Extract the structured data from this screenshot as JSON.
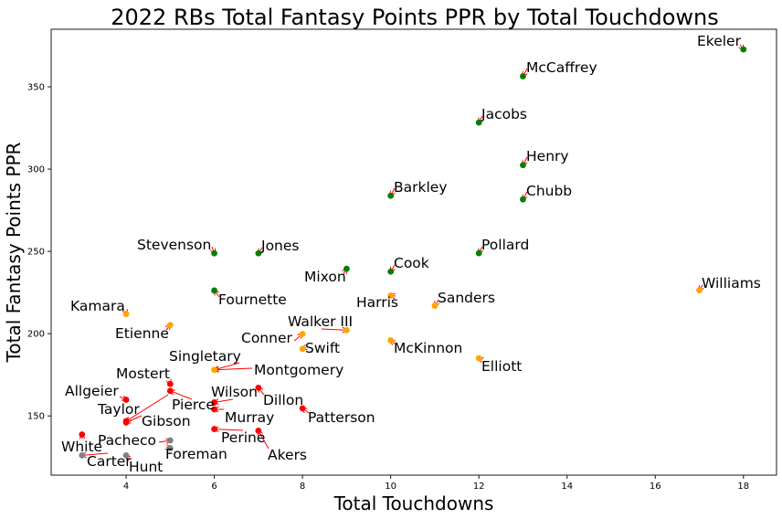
{
  "chart_data": {
    "type": "scatter",
    "title": "2022 RBs Total Fantasy Points PPR by Total Touchdowns",
    "xlabel": "Total Touchdowns",
    "ylabel": "Total Fantasy Points PPR",
    "xlim": [
      2.3,
      18.75
    ],
    "ylim": [
      114,
      385
    ],
    "xticks": [
      4,
      6,
      8,
      10,
      12,
      14,
      16,
      18
    ],
    "yticks": [
      150,
      200,
      250,
      300,
      350
    ],
    "grid": false,
    "colors": {
      "green": "#008000",
      "orange": "#ffa500",
      "red": "#ff0000",
      "gray": "#808080",
      "arrow": "#ff0000"
    },
    "points": [
      {
        "name": "Ekeler",
        "x": 18,
        "y": 372.7,
        "color": "green"
      },
      {
        "name": "McCaffrey",
        "x": 13,
        "y": 356.4,
        "color": "green"
      },
      {
        "name": "Jacobs",
        "x": 12,
        "y": 328.3,
        "color": "green"
      },
      {
        "name": "Henry",
        "x": 13,
        "y": 302.4,
        "color": "green"
      },
      {
        "name": "Barkley",
        "x": 10,
        "y": 283.8,
        "color": "green"
      },
      {
        "name": "Chubb",
        "x": 13,
        "y": 281.6,
        "color": "green"
      },
      {
        "name": "Stevenson",
        "x": 6,
        "y": 248.8,
        "color": "green"
      },
      {
        "name": "Jones",
        "x": 7,
        "y": 248.8,
        "color": "green"
      },
      {
        "name": "Pollard",
        "x": 12,
        "y": 248.9,
        "color": "green"
      },
      {
        "name": "Mixon",
        "x": 9,
        "y": 239.4,
        "color": "green"
      },
      {
        "name": "Cook",
        "x": 10,
        "y": 237.7,
        "color": "green"
      },
      {
        "name": "Fournette",
        "x": 6,
        "y": 226.2,
        "color": "green"
      },
      {
        "name": "Williams",
        "x": 17,
        "y": 226.3,
        "color": "orange"
      },
      {
        "name": "Harris",
        "x": 10,
        "y": 223.2,
        "color": "orange"
      },
      {
        "name": "Sanders",
        "x": 11,
        "y": 216.9,
        "color": "orange"
      },
      {
        "name": "Kamara",
        "x": 4,
        "y": 211.9,
        "color": "orange"
      },
      {
        "name": "Etienne",
        "x": 5,
        "y": 205.2,
        "color": "orange"
      },
      {
        "name": "Walker III",
        "x": 9,
        "y": 202.1,
        "color": "orange"
      },
      {
        "name": "Conner",
        "x": 8,
        "y": 199.8,
        "color": "orange"
      },
      {
        "name": "McKinnon",
        "x": 10,
        "y": 195.9,
        "color": "orange"
      },
      {
        "name": "Swift",
        "x": 8,
        "y": 190.7,
        "color": "orange"
      },
      {
        "name": "Elliott",
        "x": 12,
        "y": 185.0,
        "color": "orange"
      },
      {
        "name": "Singletary",
        "x": 6,
        "y": 178.0,
        "color": "orange"
      },
      {
        "name": "Montgomery",
        "x": 6,
        "y": 178.0,
        "color": "orange"
      },
      {
        "name": "Mostert",
        "x": 5,
        "y": 169.4,
        "color": "red"
      },
      {
        "name": "Dillon",
        "x": 7,
        "y": 167.1,
        "color": "red"
      },
      {
        "name": "Pierce",
        "x": 5,
        "y": 165.2,
        "color": "red"
      },
      {
        "name": "Allgeier",
        "x": 4,
        "y": 159.8,
        "color": "red"
      },
      {
        "name": "Wilson",
        "x": 6,
        "y": 158.2,
        "color": "red"
      },
      {
        "name": "Murray",
        "x": 6,
        "y": 154.0,
        "color": "red"
      },
      {
        "name": "Patterson",
        "x": 8,
        "y": 154.6,
        "color": "red"
      },
      {
        "name": "Taylor",
        "x": 4,
        "y": 146.8,
        "color": "red"
      },
      {
        "name": "Gibson",
        "x": 4,
        "y": 146.0,
        "color": "red"
      },
      {
        "name": "Perine",
        "x": 6,
        "y": 142.0,
        "color": "red"
      },
      {
        "name": "Akers",
        "x": 7,
        "y": 141.0,
        "color": "red"
      },
      {
        "name": "White",
        "x": 3,
        "y": 138.7,
        "color": "red"
      },
      {
        "name": "Pacheco",
        "x": 5,
        "y": 135.1,
        "color": "gray"
      },
      {
        "name": "Foreman",
        "x": 5,
        "y": 130.4,
        "color": "gray"
      },
      {
        "name": "Carter",
        "x": 3,
        "y": 126.0,
        "color": "gray"
      },
      {
        "name": "Hunt",
        "x": 4,
        "y": 126.0,
        "color": "gray"
      }
    ]
  }
}
